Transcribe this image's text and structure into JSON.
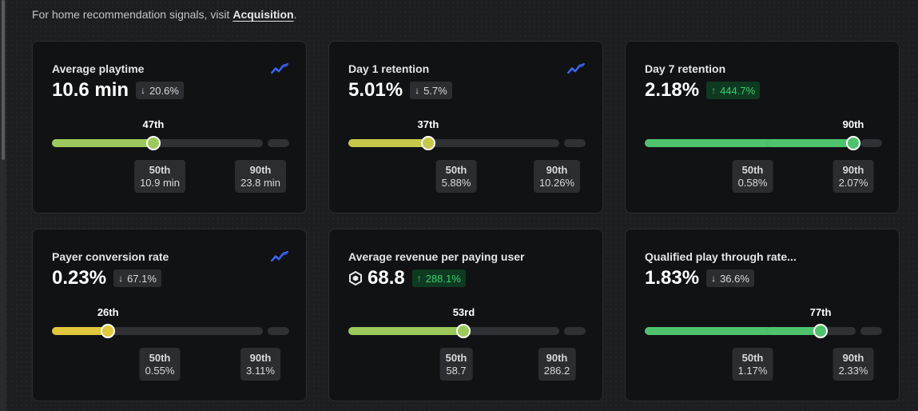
{
  "header": {
    "subtitle_prefix": "For home recommendation signals, visit",
    "subtitle_link": "Acquisition",
    "subtitle_suffix": "."
  },
  "colors": {
    "yellow": "#e0c73c",
    "yellow_green": "#c6c84a",
    "light_green": "#9cc95c",
    "green": "#4fc26e",
    "trend_icon": "#3a67f5"
  },
  "cards": [
    {
      "title": "Average playtime",
      "value": "10.6 min",
      "change": "20.6%",
      "direction": "down",
      "trend_icon": true,
      "robux_icon": false,
      "percentile_label": "47th",
      "percentile": 47,
      "bar_color": "#9cc95c",
      "p50_label": "50th",
      "p50_value": "10.9 min",
      "p90_label": "90th",
      "p90_value": "23.8 min"
    },
    {
      "title": "Day 1 retention",
      "value": "5.01%",
      "change": "5.7%",
      "direction": "down",
      "trend_icon": true,
      "robux_icon": false,
      "percentile_label": "37th",
      "percentile": 37,
      "bar_color": "#c6c84a",
      "p50_label": "50th",
      "p50_value": "5.88%",
      "p90_label": "90th",
      "p90_value": "10.26%"
    },
    {
      "title": "Day 7 retention",
      "value": "2.18%",
      "change": "444.7%",
      "direction": "up",
      "trend_icon": false,
      "robux_icon": false,
      "percentile_label": "90th",
      "percentile": 90,
      "bar_color": "#4fc26e",
      "p50_label": "50th",
      "p50_value": "0.58%",
      "p90_label": "90th",
      "p90_value": "2.07%"
    },
    {
      "title": "Payer conversion rate",
      "value": "0.23%",
      "change": "67.1%",
      "direction": "down",
      "trend_icon": true,
      "robux_icon": false,
      "percentile_label": "26th",
      "percentile": 26,
      "bar_color": "#e0c73c",
      "p50_label": "50th",
      "p50_value": "0.55%",
      "p90_label": "90th",
      "p90_value": "3.11%"
    },
    {
      "title": "Average revenue per paying user",
      "value": "68.8",
      "change": "288.1%",
      "direction": "up",
      "trend_icon": false,
      "robux_icon": true,
      "percentile_label": "53rd",
      "percentile": 53,
      "bar_color": "#9cc95c",
      "p50_label": "50th",
      "p50_value": "58.7",
      "p90_label": "90th",
      "p90_value": "286.2"
    },
    {
      "title": "Qualified play through rate...",
      "value": "1.83%",
      "change": "36.6%",
      "direction": "down",
      "trend_icon": false,
      "robux_icon": false,
      "percentile_label": "77th",
      "percentile": 77,
      "bar_color": "#4fc26e",
      "p50_label": "50th",
      "p50_value": "1.17%",
      "p90_label": "90th",
      "p90_value": "2.33%"
    }
  ]
}
